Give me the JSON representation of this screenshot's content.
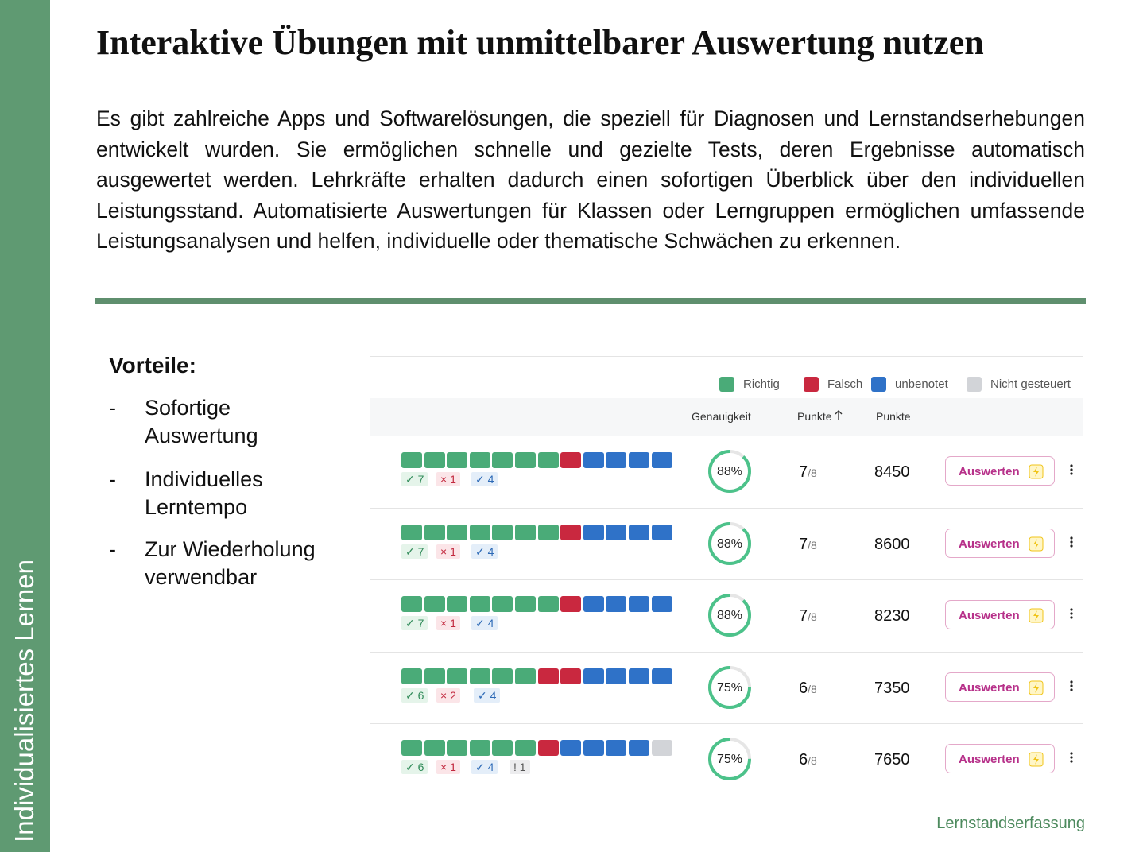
{
  "sidebar": {
    "label": "Individualisiertes Lernen"
  },
  "header": {
    "title": "Interaktive Übungen mit unmittelbarer Auswertung nutzen"
  },
  "body": {
    "paragraph": "Es gibt zahlreiche Apps und Softwarelösungen, die speziell für Diagnosen und Lernstandserhebungen entwickelt wurden. Sie ermöglichen schnelle und gezielte Tests, deren Ergebnisse automatisch ausgewertet werden. Lehrkräfte erhalten dadurch einen sofortigen Überblick über den individuellen Leistungsstand. Automatisierte Auswertungen für Klassen oder Lerngruppen ermöglichen umfassende Leistungsanalysen und helfen, individuelle oder thematische Schwächen zu erkennen."
  },
  "advantages": {
    "heading": "Vorteile:",
    "bullet": "-",
    "items": [
      "Sofortige Auswertung",
      "Individuelles Lerntempo",
      "Zur Wiederholung verwendbar"
    ]
  },
  "table": {
    "legend": [
      {
        "name": "Richtig",
        "color": "#4aab78"
      },
      {
        "name": "Falsch",
        "color": "#c9283f"
      },
      {
        "name": "unbenotet",
        "color": "#2f72c8"
      },
      {
        "name": "Nicht gesteuert",
        "color": "#d2d4d8"
      }
    ],
    "columns": {
      "accuracy": "Genauigkeit",
      "score": "Punkte",
      "points": "Punkte"
    },
    "button": "Auswerten",
    "rows": [
      {
        "cells": [
          "Richtig",
          "Richtig",
          "Richtig",
          "Richtig",
          "Richtig",
          "Richtig",
          "Richtig",
          "Falsch",
          "unbenotet",
          "unbenotet",
          "unbenotet",
          "unbenotet"
        ],
        "badges": [
          {
            "status": "Richtig",
            "symbol": "✓",
            "count": 7
          },
          {
            "status": "Falsch",
            "symbol": "×",
            "count": 1
          },
          {
            "status": "unbenotet",
            "symbol": "✓",
            "count": 4
          }
        ],
        "accuracy": {
          "value": 88,
          "label": "88%"
        },
        "score": 7,
        "max": {
          "value": 8,
          "label": "/8"
        },
        "points": 8450
      },
      {
        "cells": [
          "Richtig",
          "Richtig",
          "Richtig",
          "Richtig",
          "Richtig",
          "Richtig",
          "Richtig",
          "Falsch",
          "unbenotet",
          "unbenotet",
          "unbenotet",
          "unbenotet"
        ],
        "badges": [
          {
            "status": "Richtig",
            "symbol": "✓",
            "count": 7
          },
          {
            "status": "Falsch",
            "symbol": "×",
            "count": 1
          },
          {
            "status": "unbenotet",
            "symbol": "✓",
            "count": 4
          }
        ],
        "accuracy": {
          "value": 88,
          "label": "88%"
        },
        "score": 7,
        "max": {
          "value": 8,
          "label": "/8"
        },
        "points": 8600
      },
      {
        "cells": [
          "Richtig",
          "Richtig",
          "Richtig",
          "Richtig",
          "Richtig",
          "Richtig",
          "Richtig",
          "Falsch",
          "unbenotet",
          "unbenotet",
          "unbenotet",
          "unbenotet"
        ],
        "badges": [
          {
            "status": "Richtig",
            "symbol": "✓",
            "count": 7
          },
          {
            "status": "Falsch",
            "symbol": "×",
            "count": 1
          },
          {
            "status": "unbenotet",
            "symbol": "✓",
            "count": 4
          }
        ],
        "accuracy": {
          "value": 88,
          "label": "88%"
        },
        "score": 7,
        "max": {
          "value": 8,
          "label": "/8"
        },
        "points": 8230
      },
      {
        "cells": [
          "Richtig",
          "Richtig",
          "Richtig",
          "Richtig",
          "Richtig",
          "Richtig",
          "Falsch",
          "Falsch",
          "unbenotet",
          "unbenotet",
          "unbenotet",
          "unbenotet"
        ],
        "badges": [
          {
            "status": "Richtig",
            "symbol": "✓",
            "count": 6
          },
          {
            "status": "Falsch",
            "symbol": "×",
            "count": 2
          },
          {
            "status": "unbenotet",
            "symbol": "✓",
            "count": 4
          }
        ],
        "accuracy": {
          "value": 75,
          "label": "75%"
        },
        "score": 6,
        "max": {
          "value": 8,
          "label": "/8"
        },
        "points": 7350
      },
      {
        "cells": [
          "Richtig",
          "Richtig",
          "Richtig",
          "Richtig",
          "Richtig",
          "Richtig",
          "Falsch",
          "unbenotet",
          "unbenotet",
          "unbenotet",
          "unbenotet",
          "Nicht gesteuert"
        ],
        "badges": [
          {
            "status": "Richtig",
            "symbol": "✓",
            "count": 6
          },
          {
            "status": "Falsch",
            "symbol": "×",
            "count": 1
          },
          {
            "status": "unbenotet",
            "symbol": "✓",
            "count": 4
          },
          {
            "status": "Nicht gesteuert",
            "symbol": "!",
            "count": 1
          }
        ],
        "accuracy": {
          "value": 75,
          "label": "75%"
        },
        "score": 6,
        "max": {
          "value": 8,
          "label": "/8"
        },
        "points": 7650
      }
    ]
  },
  "footer": {
    "label": "Lernstandserfassung"
  }
}
